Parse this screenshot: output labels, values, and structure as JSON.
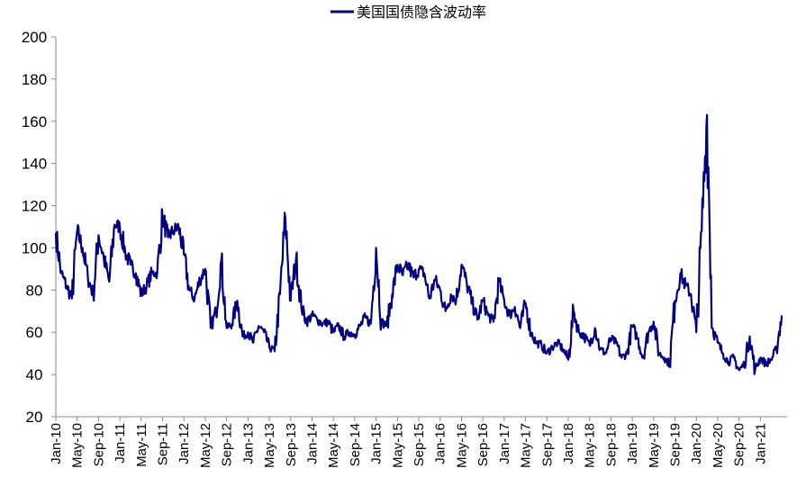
{
  "chart_data": {
    "type": "line",
    "title": "",
    "xlabel": "",
    "ylabel": "",
    "ylim": [
      20,
      200
    ],
    "yticks": [
      20,
      40,
      60,
      80,
      100,
      120,
      140,
      160,
      180,
      200
    ],
    "grid": false,
    "legend": {
      "placement": "top-center",
      "entries": [
        "美国国债隐含波动率"
      ]
    },
    "x_tick_labels": [
      "Jan-10",
      "May-10",
      "Sep-10",
      "Jan-11",
      "May-11",
      "Sep-11",
      "Jan-12",
      "May-12",
      "Sep-12",
      "Jan-13",
      "May-13",
      "Sep-13",
      "Jan-14",
      "May-14",
      "Sep-14",
      "Jan-15",
      "May-15",
      "Sep-15",
      "Jan-16",
      "May-16",
      "Sep-16",
      "Jan-17",
      "May-17",
      "Sep-17",
      "Jan-18",
      "May-18",
      "Sep-18",
      "Jan-19",
      "May-19",
      "Sep-19",
      "Jan-20",
      "May-20",
      "Sep-20",
      "Jan-21"
    ],
    "x_range": [
      "Jan-10",
      "Jun-21"
    ],
    "series": [
      {
        "name": "美国国债隐含波动率",
        "color": "#000080",
        "x": [
          "2010-01",
          "2010-02",
          "2010-03",
          "2010-04",
          "2010-05",
          "2010-06",
          "2010-07",
          "2010-08",
          "2010-09",
          "2010-10",
          "2010-11",
          "2010-12",
          "2011-01",
          "2011-02",
          "2011-03",
          "2011-04",
          "2011-05",
          "2011-06",
          "2011-07",
          "2011-08",
          "2011-09",
          "2011-10",
          "2011-11",
          "2011-12",
          "2012-01",
          "2012-02",
          "2012-03",
          "2012-04",
          "2012-05",
          "2012-06",
          "2012-07",
          "2012-08",
          "2012-09",
          "2012-10",
          "2012-11",
          "2012-12",
          "2013-01",
          "2013-02",
          "2013-03",
          "2013-04",
          "2013-05",
          "2013-06",
          "2013-07",
          "2013-08",
          "2013-09",
          "2013-10",
          "2013-11",
          "2013-12",
          "2014-01",
          "2014-02",
          "2014-03",
          "2014-04",
          "2014-05",
          "2014-06",
          "2014-07",
          "2014-08",
          "2014-09",
          "2014-10",
          "2014-11",
          "2014-12",
          "2015-01",
          "2015-02",
          "2015-03",
          "2015-04",
          "2015-05",
          "2015-06",
          "2015-07",
          "2015-08",
          "2015-09",
          "2015-10",
          "2015-11",
          "2015-12",
          "2016-01",
          "2016-02",
          "2016-03",
          "2016-04",
          "2016-05",
          "2016-06",
          "2016-07",
          "2016-08",
          "2016-09",
          "2016-10",
          "2016-11",
          "2016-12",
          "2017-01",
          "2017-02",
          "2017-03",
          "2017-04",
          "2017-05",
          "2017-06",
          "2017-07",
          "2017-08",
          "2017-09",
          "2017-10",
          "2017-11",
          "2017-12",
          "2018-01",
          "2018-02",
          "2018-03",
          "2018-04",
          "2018-05",
          "2018-06",
          "2018-07",
          "2018-08",
          "2018-09",
          "2018-10",
          "2018-11",
          "2018-12",
          "2019-01",
          "2019-02",
          "2019-03",
          "2019-04",
          "2019-05",
          "2019-06",
          "2019-07",
          "2019-08",
          "2019-09",
          "2019-10",
          "2019-11",
          "2019-12",
          "2020-01",
          "2020-02",
          "2020-03",
          "2020-04",
          "2020-05",
          "2020-06",
          "2020-07",
          "2020-08",
          "2020-09",
          "2020-10",
          "2020-11",
          "2020-12",
          "2021-01",
          "2021-02",
          "2021-03",
          "2021-04",
          "2021-05"
        ],
        "values": [
          107,
          88,
          82,
          76,
          108,
          100,
          86,
          78,
          106,
          95,
          84,
          111,
          110,
          98,
          92,
          88,
          78,
          82,
          88,
          88,
          115,
          105,
          108,
          110,
          97,
          80,
          76,
          85,
          90,
          62,
          70,
          94,
          62,
          64,
          75,
          58,
          60,
          55,
          63,
          60,
          53,
          51,
          78,
          114,
          75,
          95,
          72,
          65,
          68,
          66,
          64,
          65,
          60,
          63,
          58,
          60,
          59,
          63,
          67,
          64,
          100,
          65,
          63,
          78,
          92,
          87,
          92,
          86,
          90,
          88,
          76,
          85,
          80,
          70,
          78,
          75,
          92,
          83,
          74,
          66,
          75,
          68,
          65,
          84,
          75,
          68,
          72,
          62,
          74,
          60,
          55,
          54,
          50,
          53,
          55,
          52,
          47,
          70,
          60,
          58,
          54,
          62,
          52,
          50,
          57,
          55,
          48,
          50,
          63,
          57,
          48,
          60,
          65,
          50,
          48,
          45,
          75,
          88,
          82,
          78,
          60,
          108,
          163,
          62,
          55,
          50,
          46,
          48,
          42,
          45,
          58,
          42,
          48,
          45,
          47,
          52,
          68
        ]
      }
    ]
  }
}
